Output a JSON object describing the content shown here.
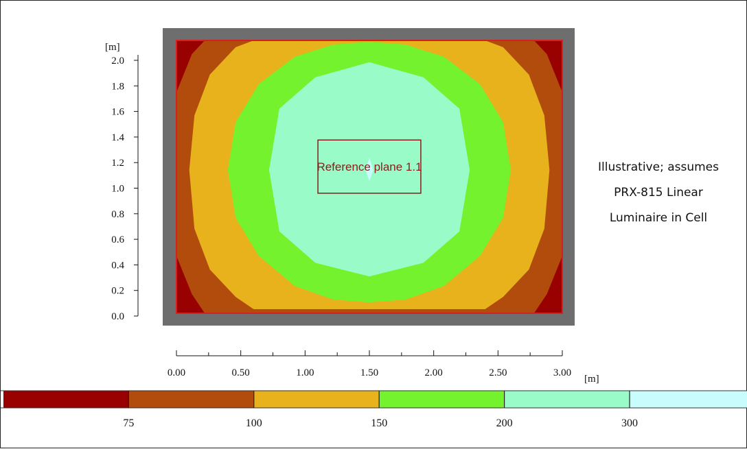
{
  "chart_data": {
    "type": "heatmap",
    "title": "",
    "x_unit": "[m]",
    "y_unit": "[m]",
    "x_ticks": [
      "0.00",
      "0.50",
      "1.00",
      "1.50",
      "2.00",
      "2.50",
      "3.00"
    ],
    "y_ticks": [
      "0.0",
      "0.2",
      "0.4",
      "0.6",
      "0.8",
      "1.0",
      "1.2",
      "1.4",
      "1.6",
      "1.8",
      "2.0"
    ],
    "xlim": [
      0,
      3
    ],
    "ylim": [
      0,
      2
    ],
    "contour_levels": [
      75,
      100,
      150,
      200,
      300
    ],
    "band_colors": [
      "#990000",
      "#b14c0d",
      "#e8b21c",
      "#74f22e",
      "#99fbc8",
      "#c9fdfd"
    ],
    "contours": [
      {
        "level": 75,
        "points": [
          [
            0,
            1.62
          ],
          [
            0.12,
            1.9
          ],
          [
            0.22,
            2.0
          ],
          [
            2.78,
            2.0
          ],
          [
            2.88,
            1.9
          ],
          [
            3.0,
            1.62
          ],
          [
            3.0,
            0.42
          ],
          [
            2.88,
            0.14
          ],
          [
            2.78,
            0.0
          ],
          [
            0.22,
            0.0
          ],
          [
            0.12,
            0.14
          ],
          [
            0,
            0.42
          ]
        ]
      },
      {
        "level": 100,
        "points": [
          [
            0.1,
            1.05
          ],
          [
            0.14,
            1.45
          ],
          [
            0.26,
            1.75
          ],
          [
            0.46,
            1.95
          ],
          [
            0.6,
            2.0
          ],
          [
            2.4,
            2.0
          ],
          [
            2.54,
            1.95
          ],
          [
            2.74,
            1.75
          ],
          [
            2.86,
            1.45
          ],
          [
            2.9,
            1.05
          ],
          [
            2.86,
            0.62
          ],
          [
            2.74,
            0.32
          ],
          [
            2.54,
            0.12
          ],
          [
            2.4,
            0.03
          ],
          [
            0.6,
            0.03
          ],
          [
            0.46,
            0.12
          ],
          [
            0.26,
            0.32
          ],
          [
            0.14,
            0.62
          ]
        ]
      },
      {
        "level": 150,
        "points": [
          [
            0.4,
            1.05
          ],
          [
            0.46,
            1.4
          ],
          [
            0.64,
            1.68
          ],
          [
            0.92,
            1.88
          ],
          [
            1.22,
            1.97
          ],
          [
            1.5,
            1.99
          ],
          [
            1.78,
            1.97
          ],
          [
            2.08,
            1.88
          ],
          [
            2.36,
            1.68
          ],
          [
            2.54,
            1.4
          ],
          [
            2.6,
            1.05
          ],
          [
            2.54,
            0.7
          ],
          [
            2.36,
            0.42
          ],
          [
            2.08,
            0.2
          ],
          [
            1.78,
            0.1
          ],
          [
            1.5,
            0.08
          ],
          [
            1.22,
            0.1
          ],
          [
            0.92,
            0.2
          ],
          [
            0.64,
            0.42
          ],
          [
            0.46,
            0.7
          ]
        ]
      },
      {
        "level": 200,
        "points": [
          [
            0.72,
            1.05
          ],
          [
            0.8,
            1.5
          ],
          [
            1.08,
            1.73
          ],
          [
            1.5,
            1.84
          ],
          [
            1.92,
            1.73
          ],
          [
            2.2,
            1.5
          ],
          [
            2.28,
            1.05
          ],
          [
            2.2,
            0.6
          ],
          [
            1.92,
            0.37
          ],
          [
            1.5,
            0.27
          ],
          [
            1.08,
            0.37
          ],
          [
            0.8,
            0.6
          ]
        ]
      },
      {
        "level": 300,
        "points": [
          [
            1.47,
            1.05
          ],
          [
            1.5,
            1.14
          ],
          [
            1.53,
            1.05
          ],
          [
            1.5,
            0.97
          ]
        ]
      }
    ],
    "reference_plane": {
      "label": "Reference plane 1.1",
      "x": [
        1.1,
        1.9
      ],
      "y": [
        0.88,
        1.27
      ]
    },
    "legend": {
      "labels": [
        "75",
        "100",
        "150",
        "200",
        "300"
      ]
    }
  },
  "note": {
    "lines": [
      "Illustrative; assumes",
      "PRX-815 Linear",
      "Luminaire in Cell"
    ]
  }
}
